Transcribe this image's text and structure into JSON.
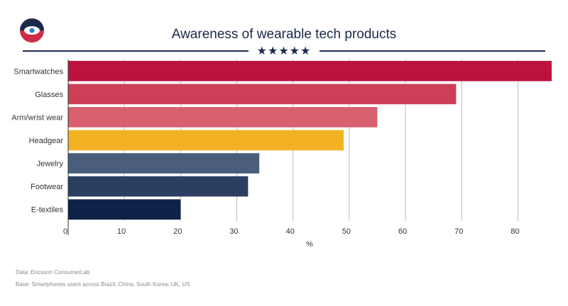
{
  "colors": {
    "navy": "#1a2a4a",
    "grid": "#bbbbbb",
    "bars": [
      "#bb133e",
      "#cc3f56",
      "#d9606f",
      "#f3b224",
      "#4a5e7c",
      "#2a3f62",
      "#0e2247"
    ]
  },
  "header": {
    "decoration": "★★★★★"
  },
  "footer": {
    "source": "Data:  Ericsson ConsumerLab",
    "base": "Base: Smartphones users across Brazil, China, South Korea, UK, US"
  },
  "chart_data": {
    "type": "bar",
    "orientation": "horizontal",
    "title": "Awareness of wearable tech products",
    "xlabel": "%",
    "ylabel": "",
    "categories": [
      "Smartwatches",
      "Glasses",
      "Arm/wrist wear",
      "Headgear",
      "Jewelry",
      "Footwear",
      "E-textiles"
    ],
    "values": [
      86,
      69,
      55,
      49,
      34,
      32,
      20
    ],
    "xlim": [
      0,
      86
    ],
    "xticks": [
      0,
      10,
      20,
      30,
      40,
      50,
      60,
      70,
      80
    ],
    "grid": true,
    "legend": "none"
  }
}
